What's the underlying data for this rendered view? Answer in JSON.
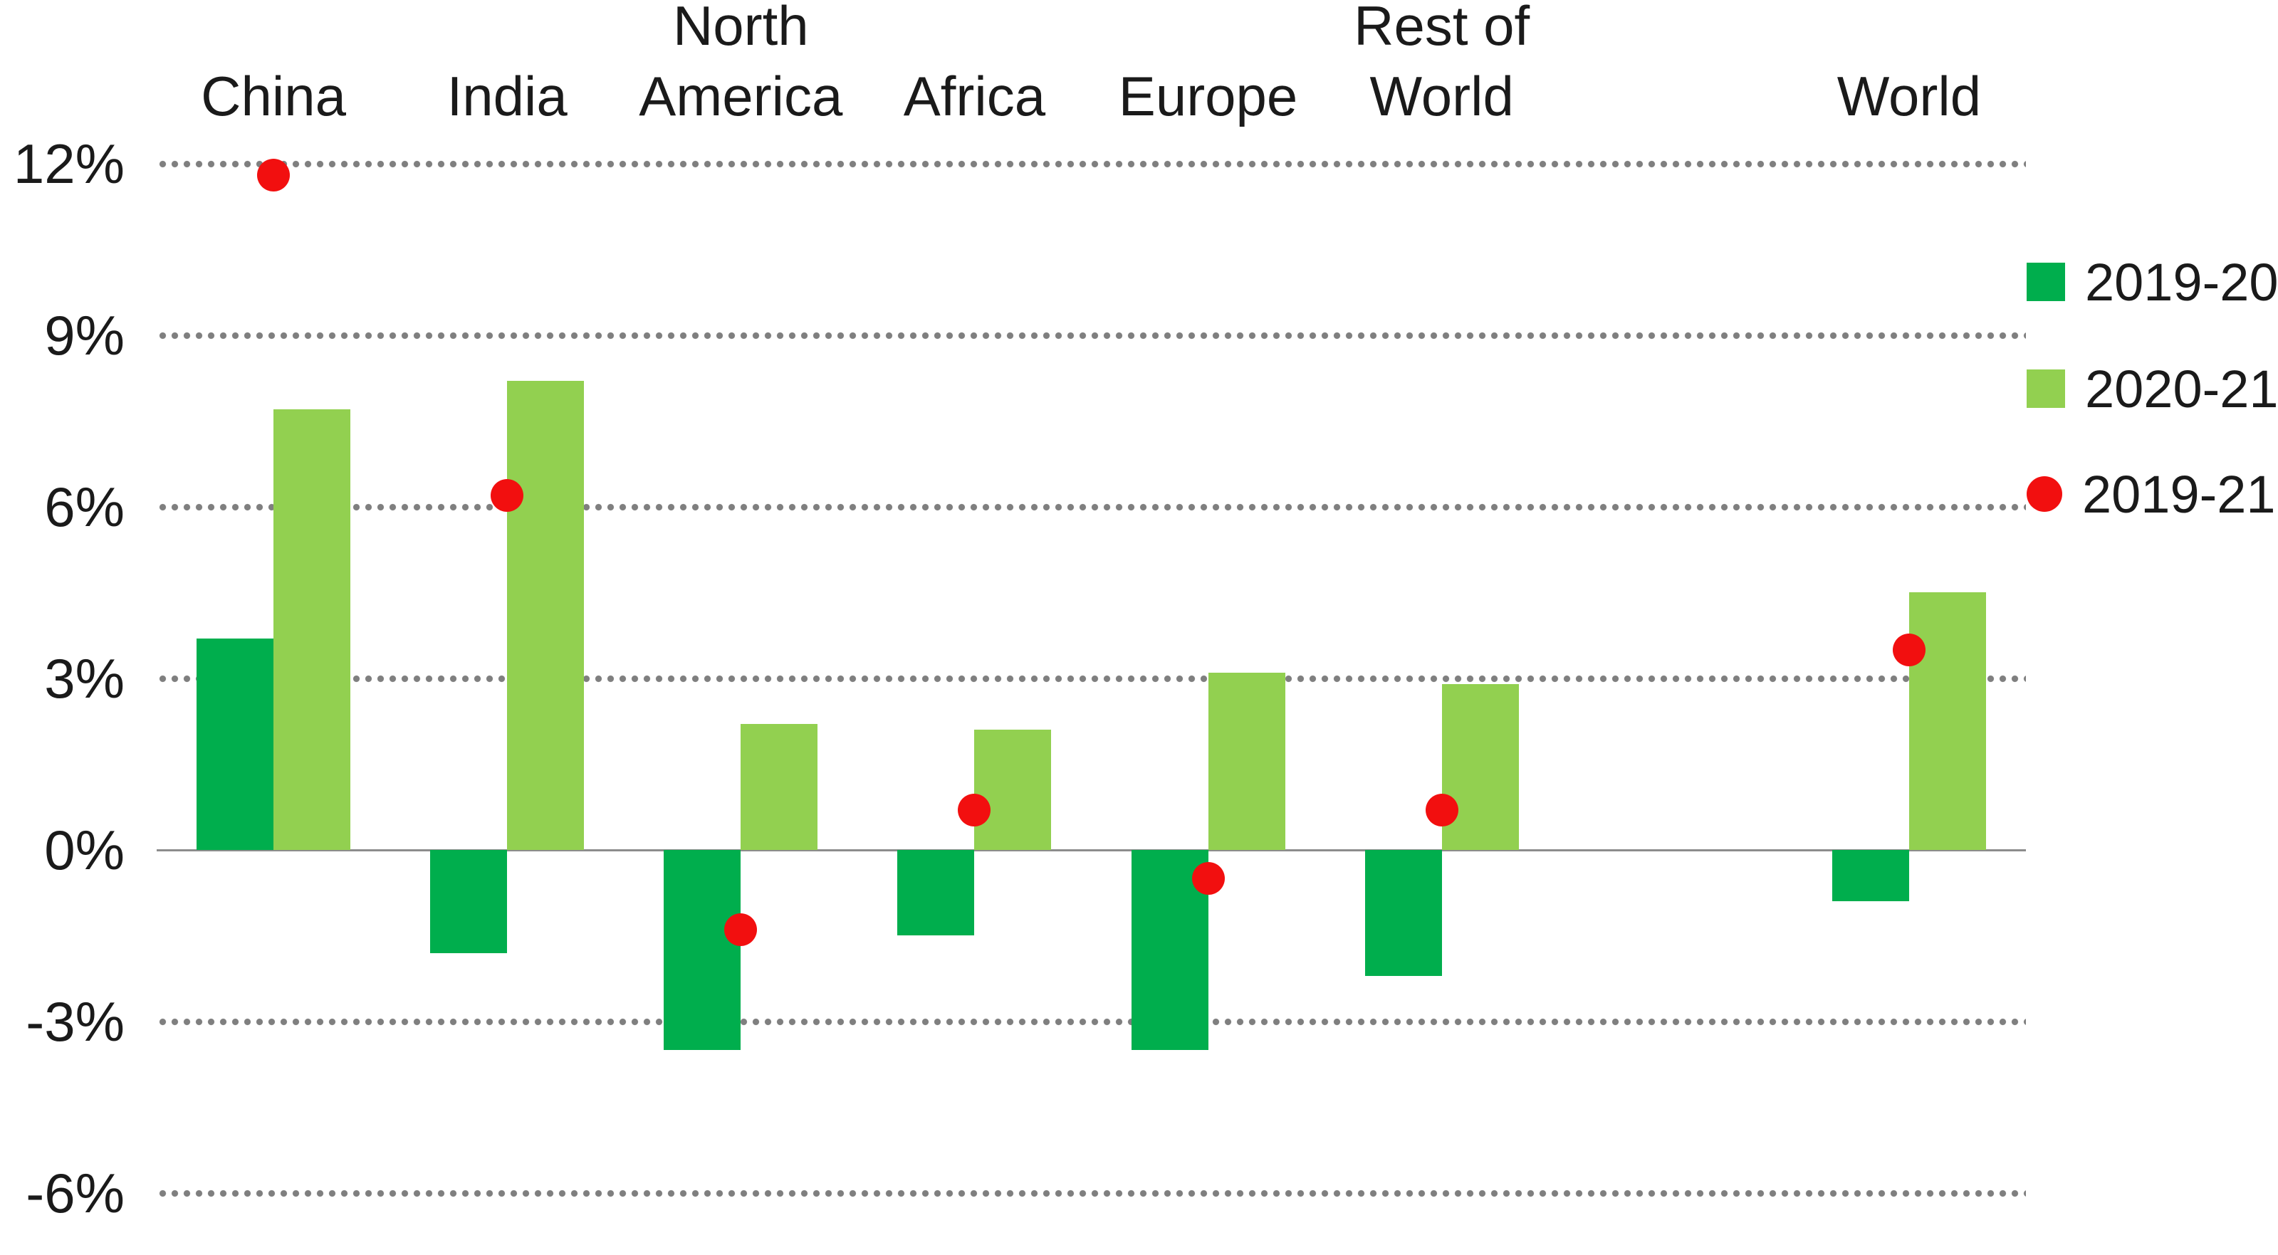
{
  "chart_data": {
    "type": "bar",
    "title": "",
    "xlabel": "",
    "ylabel": "",
    "ylim": [
      -6,
      12
    ],
    "ytick_step": 3,
    "yticks": [
      "12%",
      "9%",
      "6%",
      "3%",
      "0%",
      "-3%",
      "-6%"
    ],
    "ytick_values": [
      12,
      9,
      6,
      3,
      0,
      -3,
      -6
    ],
    "grid": "dotted horizontal gridlines, solid zero axis",
    "legend_position": "right",
    "categories": [
      {
        "label": "China",
        "slot": 0
      },
      {
        "label": "India",
        "slot": 1
      },
      {
        "label": "North\nAmerica",
        "slot": 2
      },
      {
        "label": "Africa",
        "slot": 3
      },
      {
        "label": "Europe",
        "slot": 4
      },
      {
        "label": "Rest of\nWorld",
        "slot": 5
      },
      {
        "label": "World",
        "slot": 7
      }
    ],
    "series": [
      {
        "name": "2019-20",
        "color": "#00AE4D",
        "marker": "square",
        "values": [
          3.7,
          -1.8,
          -3.5,
          -1.5,
          -3.5,
          -2.2,
          -0.9
        ]
      },
      {
        "name": "2020-21",
        "color": "#92D050",
        "marker": "square",
        "values": [
          7.7,
          8.2,
          2.2,
          2.1,
          3.1,
          2.9,
          4.5
        ]
      }
    ],
    "dot_series": {
      "name": "2019-21",
      "color": "#F20F0F",
      "marker": "circle",
      "values": [
        11.8,
        6.2,
        -1.4,
        0.7,
        -0.5,
        0.7,
        3.5
      ]
    },
    "colors": {
      "gridline": "#7f7f7f",
      "zero_axis": "#8c8c8c",
      "text": "#1a1a1a"
    }
  }
}
